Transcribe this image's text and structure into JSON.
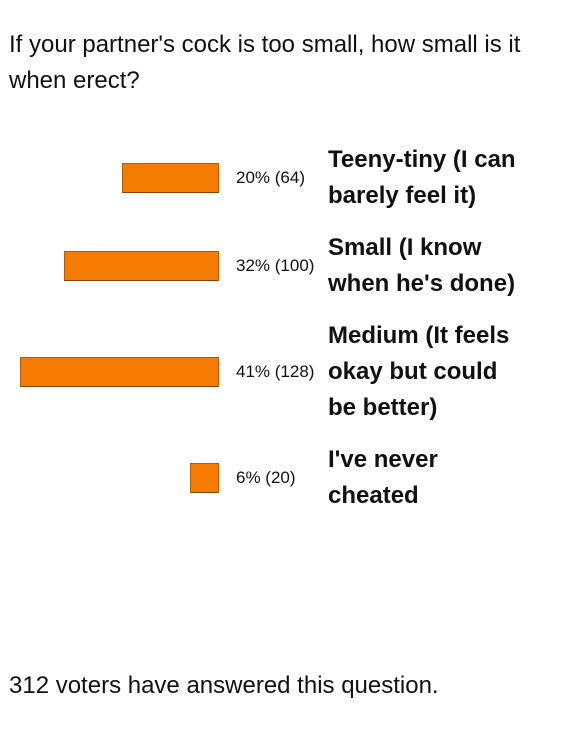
{
  "chart_data": {
    "type": "bar",
    "title": "If your partner's cock is too small, how small is it when erect?",
    "categories": [
      "Teeny-tiny (I can barely feel it)",
      "Small (I know when he's done)",
      "Medium (It feels okay but could be better)",
      "I've never cheated"
    ],
    "values": [
      20,
      32,
      41,
      6
    ],
    "value_labels": [
      "20% (64)",
      "32% (100)",
      "41% (128)",
      "6% (20)"
    ],
    "color": "#f57c00",
    "footer": "312 voters have answered this question."
  }
}
